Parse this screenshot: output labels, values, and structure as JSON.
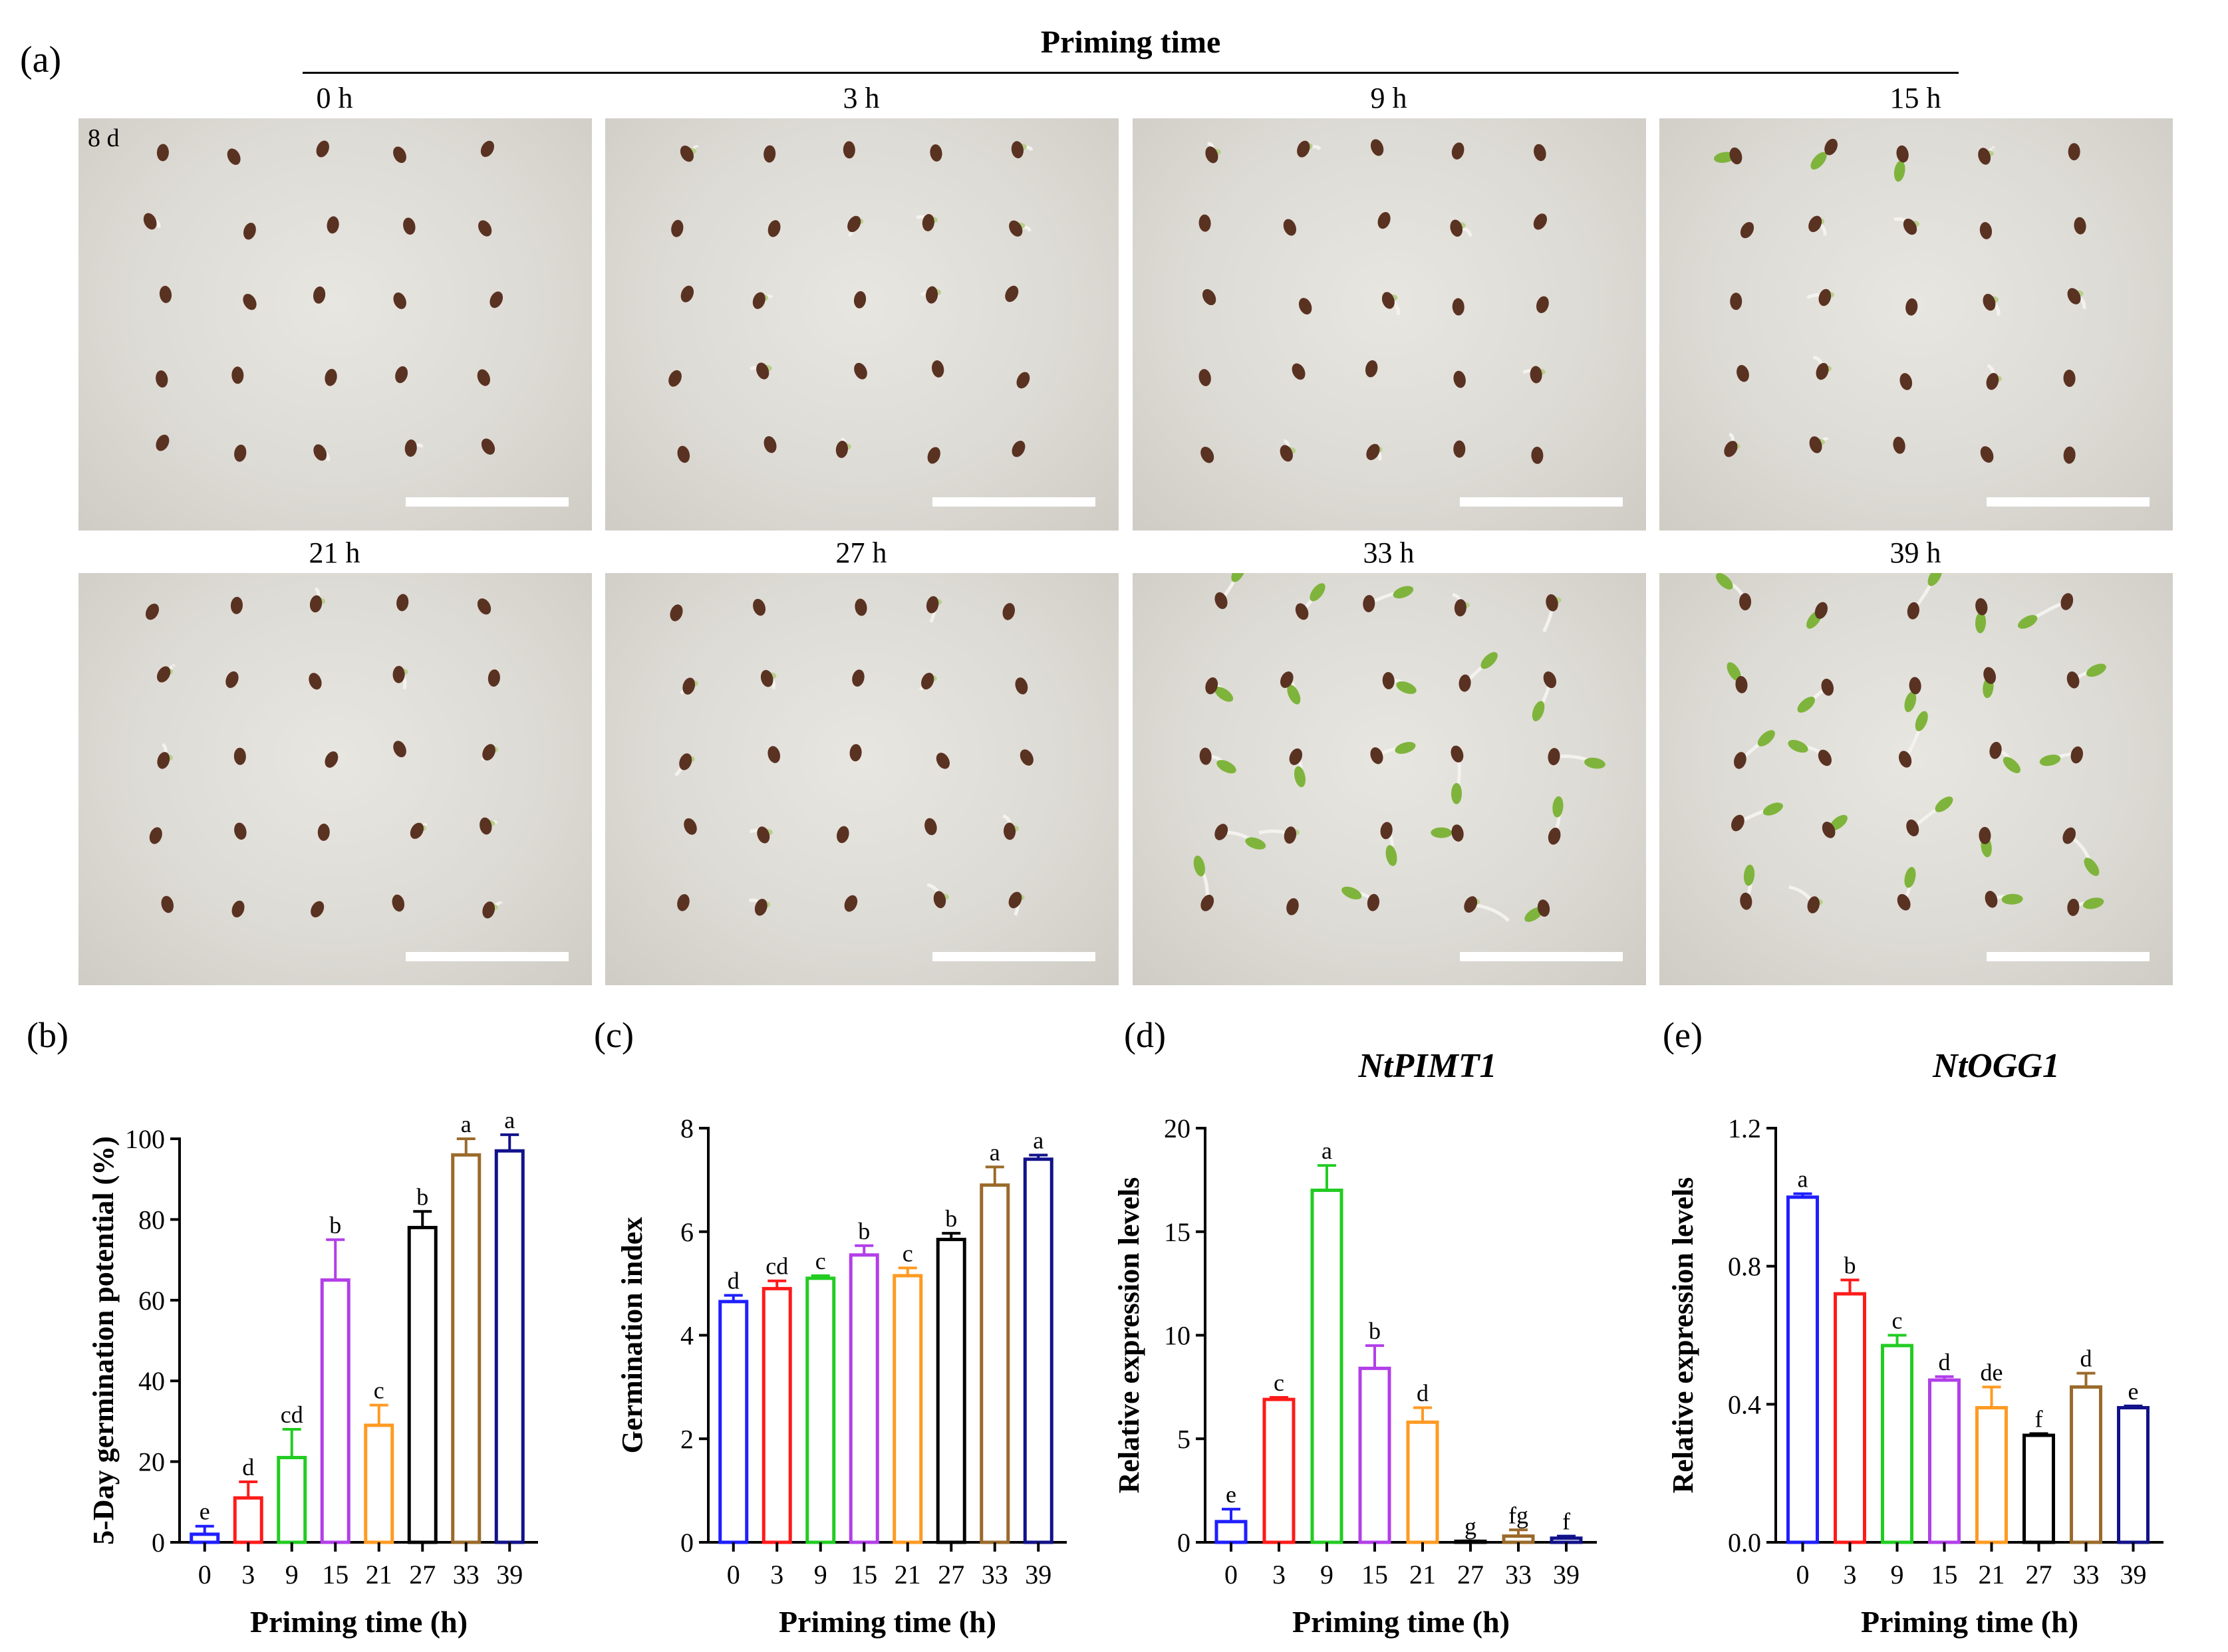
{
  "panel_a": {
    "letter": "(a)",
    "header": "Priming time",
    "day_label": "8 d",
    "photos": [
      {
        "label": "0 h",
        "seedling_stage": 0.05
      },
      {
        "label": "3 h",
        "seedling_stage": 0.12
      },
      {
        "label": "9 h",
        "seedling_stage": 0.2
      },
      {
        "label": "15 h",
        "seedling_stage": 0.35
      },
      {
        "label": "21 h",
        "seedling_stage": 0.15
      },
      {
        "label": "27 h",
        "seedling_stage": 0.25
      },
      {
        "label": "33 h",
        "seedling_stage": 0.85
      },
      {
        "label": "39 h",
        "seedling_stage": 0.9
      }
    ],
    "colors": {
      "background": "#d9d7d1",
      "seed": "#5a3222",
      "sprout": "#7fb43c",
      "scale_bar": "#ffffff"
    }
  },
  "chart_data": [
    {
      "panel": "(b)",
      "type": "bar",
      "title": "",
      "xlabel": "Priming time (h)",
      "ylabel": "5-Day germination potential (%)",
      "ylim": [
        0,
        100
      ],
      "yticks": [
        "0",
        "20",
        "40",
        "60",
        "80",
        "100"
      ],
      "categories": [
        "0",
        "3",
        "9",
        "15",
        "21",
        "27",
        "33",
        "39"
      ],
      "values": [
        2,
        11,
        21,
        65,
        29,
        78,
        96,
        97
      ],
      "errors": [
        2,
        4,
        7,
        10,
        5,
        4,
        4,
        4
      ],
      "letters": [
        "e",
        "d",
        "cd",
        "b",
        "c",
        "b",
        "a",
        "a"
      ],
      "colors": [
        "#1f1fff",
        "#ff1a1a",
        "#22cc22",
        "#b23fe8",
        "#ff9a22",
        "#000000",
        "#9a6a2a",
        "#12128a"
      ]
    },
    {
      "panel": "(c)",
      "type": "bar",
      "title": "",
      "xlabel": "Priming time (h)",
      "ylabel": "Germination index",
      "ylim": [
        0,
        8
      ],
      "yticks": [
        "0",
        "2",
        "4",
        "6",
        "8"
      ],
      "categories": [
        "0",
        "3",
        "9",
        "15",
        "21",
        "27",
        "33",
        "39"
      ],
      "values": [
        4.65,
        4.9,
        5.1,
        5.55,
        5.15,
        5.85,
        6.9,
        7.4
      ],
      "errors": [
        0.12,
        0.15,
        0.05,
        0.18,
        0.15,
        0.12,
        0.35,
        0.08
      ],
      "letters": [
        "d",
        "cd",
        "c",
        "b",
        "c",
        "b",
        "a",
        "a"
      ],
      "colors": [
        "#1f1fff",
        "#ff1a1a",
        "#22cc22",
        "#b23fe8",
        "#ff9a22",
        "#000000",
        "#9a6a2a",
        "#12128a"
      ]
    },
    {
      "panel": "(d)",
      "type": "bar",
      "title": "NtPIMT1",
      "xlabel": "Priming time (h)",
      "ylabel": "Relative expression levels",
      "ylim": [
        0,
        20
      ],
      "yticks": [
        "0",
        "5",
        "10",
        "15",
        "20"
      ],
      "categories": [
        "0",
        "3",
        "9",
        "15",
        "21",
        "27",
        "33",
        "39"
      ],
      "values": [
        1.0,
        6.9,
        17.0,
        8.4,
        5.8,
        0.05,
        0.3,
        0.2
      ],
      "errors": [
        0.6,
        0.1,
        1.2,
        1.1,
        0.7,
        0.02,
        0.3,
        0.1
      ],
      "letters": [
        "e",
        "c",
        "a",
        "b",
        "d",
        "g",
        "fg",
        "f"
      ],
      "colors": [
        "#1f1fff",
        "#ff1a1a",
        "#22cc22",
        "#b23fe8",
        "#ff9a22",
        "#000000",
        "#9a6a2a",
        "#12128a"
      ]
    },
    {
      "panel": "(e)",
      "type": "bar",
      "title": "NtOGG1",
      "xlabel": "Priming time (h)",
      "ylabel": "Relative expression levels",
      "ylim": [
        0,
        1.2
      ],
      "yticks": [
        "0.0",
        "0.4",
        "0.8",
        "1.2"
      ],
      "categories": [
        "0",
        "3",
        "9",
        "15",
        "21",
        "27",
        "33",
        "39"
      ],
      "values": [
        1.0,
        0.72,
        0.57,
        0.47,
        0.39,
        0.31,
        0.45,
        0.39
      ],
      "errors": [
        0.01,
        0.04,
        0.03,
        0.01,
        0.06,
        0.005,
        0.04,
        0.005
      ],
      "letters": [
        "a",
        "b",
        "c",
        "d",
        "de",
        "f",
        "d",
        "e"
      ],
      "colors": [
        "#1f1fff",
        "#ff1a1a",
        "#22cc22",
        "#b23fe8",
        "#ff9a22",
        "#000000",
        "#9a6a2a",
        "#12128a"
      ]
    }
  ]
}
